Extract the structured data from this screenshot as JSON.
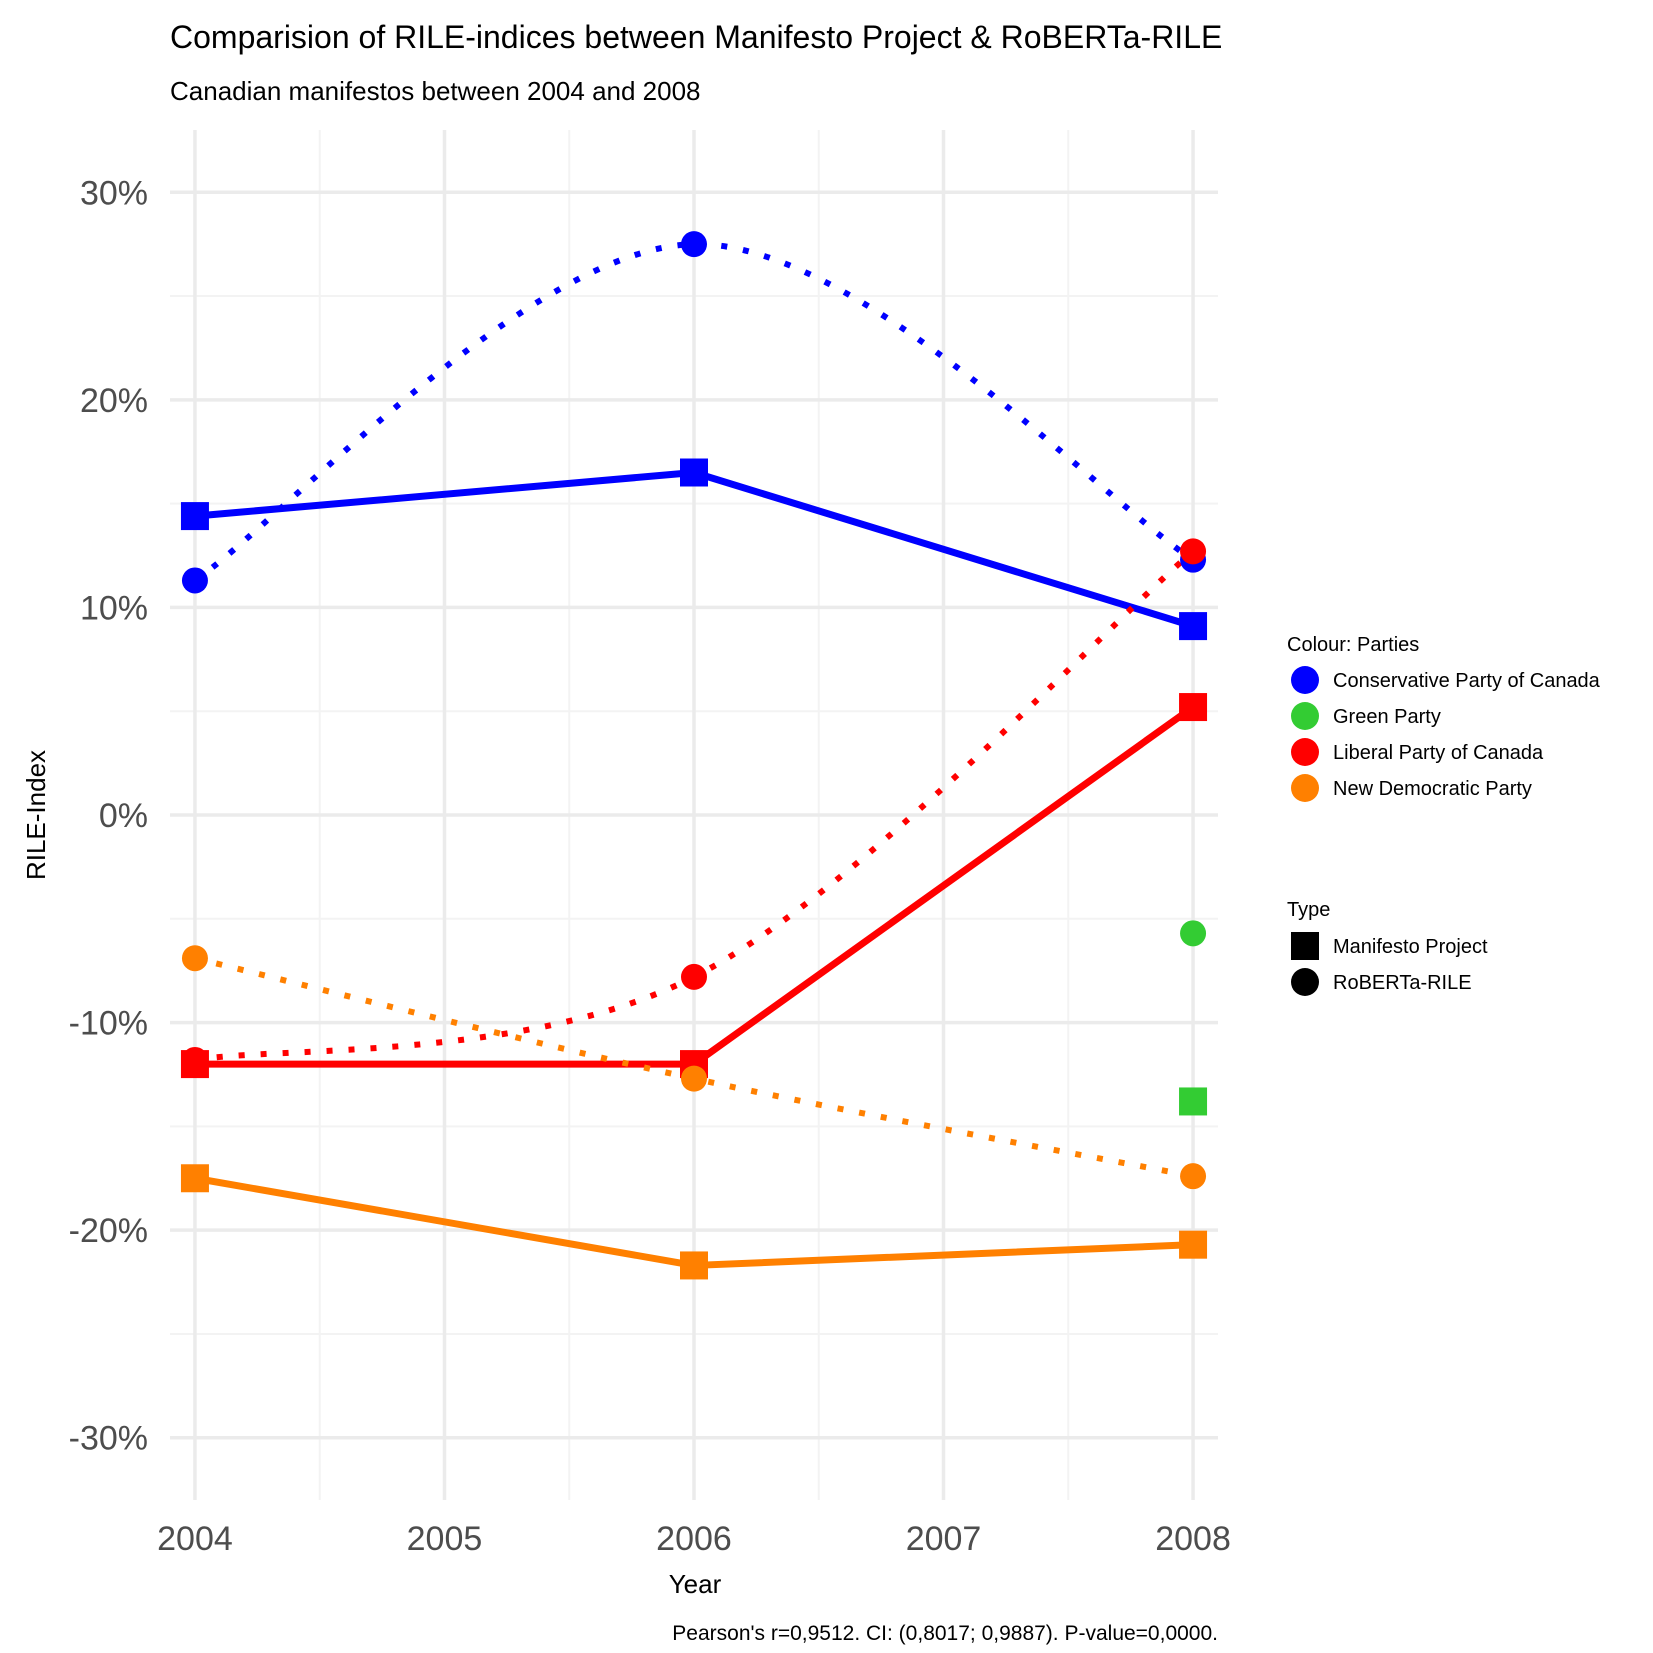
{
  "chart_data": {
    "type": "line",
    "title": "Comparision of RILE-indices between Manifesto Project & RoBERTa-RILE",
    "subtitle": "Canadian manifestos between 2004 and 2008",
    "xlabel": "Year",
    "ylabel": "RILE-Index",
    "caption": "Pearson's r=0,9512. CI: (0,8017; 0,9887). P-value=0,0000.",
    "xlim": [
      2003.9,
      2008.1
    ],
    "ylim": [
      -33,
      33
    ],
    "x_ticks": [
      2004,
      2005,
      2006,
      2007,
      2008
    ],
    "x_tick_labels": [
      "2004",
      "2005",
      "2006",
      "2007",
      "2008"
    ],
    "y_ticks": [
      -30,
      -20,
      -10,
      0,
      10,
      20,
      30
    ],
    "y_tick_labels": [
      "-30%",
      "-20%",
      "-10%",
      "0%",
      "10%",
      "20%",
      "30%"
    ],
    "grid": true,
    "legend_placement": "right",
    "parties_legend_title": "Colour: Parties",
    "type_legend_title": "Type",
    "parties": [
      {
        "name": "Conservative Party of Canada",
        "color": "#0000ff"
      },
      {
        "name": "Green Party",
        "color": "#33cc33"
      },
      {
        "name": "Liberal Party of Canada",
        "color": "#ff0000"
      },
      {
        "name": "New Democratic Party",
        "color": "#ff8000"
      }
    ],
    "types": [
      {
        "name": "Manifesto Project",
        "marker": "square",
        "line": "solid"
      },
      {
        "name": "RoBERTa-RILE",
        "marker": "circle",
        "line": "dotted"
      }
    ],
    "series": [
      {
        "party": "Conservative Party of Canada",
        "type": "Manifesto Project",
        "x": [
          2004,
          2006,
          2008
        ],
        "values": [
          14.4,
          16.5,
          9.1
        ]
      },
      {
        "party": "Conservative Party of Canada",
        "type": "RoBERTa-RILE",
        "x": [
          2004,
          2006,
          2008
        ],
        "values": [
          11.3,
          27.5,
          12.3
        ]
      },
      {
        "party": "Liberal Party of Canada",
        "type": "Manifesto Project",
        "x": [
          2004,
          2006,
          2008
        ],
        "values": [
          -12.0,
          -12.0,
          5.2
        ]
      },
      {
        "party": "Liberal Party of Canada",
        "type": "RoBERTa-RILE",
        "x": [
          2004,
          2006,
          2008
        ],
        "values": [
          -11.8,
          -7.8,
          12.7
        ]
      },
      {
        "party": "New Democratic Party",
        "type": "Manifesto Project",
        "x": [
          2004,
          2006,
          2008
        ],
        "values": [
          -17.5,
          -21.7,
          -20.7
        ]
      },
      {
        "party": "New Democratic Party",
        "type": "RoBERTa-RILE",
        "x": [
          2004,
          2006,
          2008
        ],
        "values": [
          -6.9,
          -12.7,
          -17.4
        ]
      },
      {
        "party": "Green Party",
        "type": "Manifesto Project",
        "x": [
          2008
        ],
        "values": [
          -13.8
        ]
      },
      {
        "party": "Green Party",
        "type": "RoBERTa-RILE",
        "x": [
          2008
        ],
        "values": [
          -5.7
        ]
      }
    ]
  }
}
